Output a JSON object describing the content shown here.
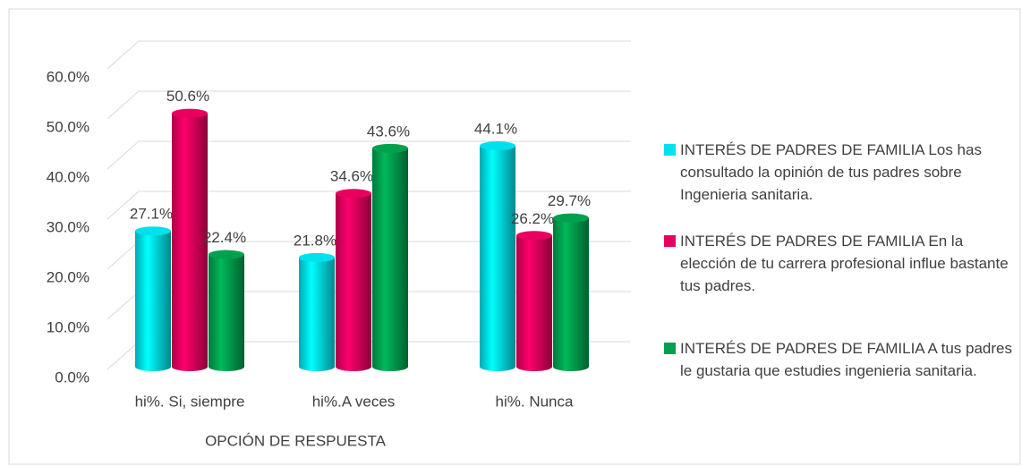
{
  "chart_data": {
    "type": "bar3d",
    "categories": [
      "hi%. Si, siempre",
      "hi%.A veces",
      "hi%. Nunca"
    ],
    "x_label": "OPCIÓN DE RESPUESTA",
    "ylim": [
      0,
      60
    ],
    "yticks": [
      {
        "value": 0,
        "label": "0.0%"
      },
      {
        "value": 10,
        "label": "10.0%"
      },
      {
        "value": 20,
        "label": "20.0%"
      },
      {
        "value": 30,
        "label": "30.0%"
      },
      {
        "value": 40,
        "label": "40.0%"
      },
      {
        "value": 50,
        "label": "50.0%"
      },
      {
        "value": 60,
        "label": "60.0%"
      }
    ],
    "grid": true,
    "legend": "right",
    "series": [
      {
        "name": "INTERÉS DE PADRES DE FAMILIA Los has consultado la opinión de tus padres sobre Ingenieria sanitaria.",
        "color": "#00e1ee",
        "values": [
          27.1,
          21.8,
          44.1
        ],
        "value_labels": [
          "27.1%",
          "21.8%",
          "44.1%"
        ]
      },
      {
        "name": "INTERÉS DE PADRES DE FAMILIA En la elección de tu carrera profesional influe bastante tus padres.",
        "color": "#e8005e",
        "values": [
          50.6,
          34.6,
          26.2
        ],
        "value_labels": [
          "50.6%",
          "34.6%",
          "26.2%"
        ]
      },
      {
        "name": "INTERÉS DE PADRES DE FAMILIA A tus padres le gustaria que estudies ingenieria sanitaria.",
        "color": "#00a04e",
        "values": [
          22.4,
          43.6,
          29.7
        ],
        "value_labels": [
          "22.4%",
          "43.6%",
          "29.7%"
        ]
      }
    ]
  }
}
